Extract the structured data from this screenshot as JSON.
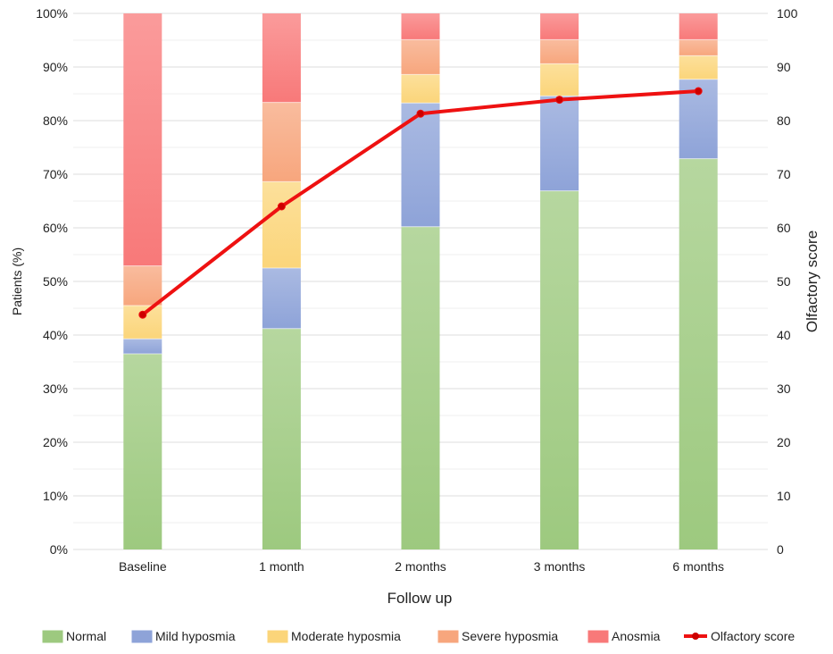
{
  "chart_data": {
    "type": "bar",
    "stacked": true,
    "title": "",
    "xlabel": "Follow up",
    "ylabel": "Patients (%)",
    "y2label": "Olfactory score",
    "categories": [
      "Baseline",
      "1 month",
      "2 months",
      "3 months",
      "6 months"
    ],
    "ylim": [
      0,
      100
    ],
    "y2lim": [
      0,
      100
    ],
    "yticks": [
      "0%",
      "10%",
      "20%",
      "30%",
      "40%",
      "50%",
      "60%",
      "70%",
      "80%",
      "90%",
      "100%"
    ],
    "y2ticks": [
      "0",
      "10",
      "20",
      "30",
      "40",
      "50",
      "60",
      "70",
      "80",
      "90",
      "100"
    ],
    "grid": true,
    "legend_position": "bottom",
    "series": [
      {
        "name": "Normal",
        "color": "#9dc97f",
        "values": [
          36.5,
          41.2,
          60.2,
          66.9,
          72.9
        ]
      },
      {
        "name": "Mild hyposmia",
        "color": "#8ea3d8",
        "values": [
          2.8,
          11.3,
          23.1,
          17.7,
          14.8
        ]
      },
      {
        "name": "Moderate hyposmia",
        "color": "#fbd57a",
        "values": [
          6.2,
          16.1,
          5.3,
          6.0,
          4.4
        ]
      },
      {
        "name": "Severe hyposmia",
        "color": "#f7a67d",
        "values": [
          7.4,
          14.8,
          6.5,
          4.5,
          3.0
        ]
      },
      {
        "name": "Anosmia",
        "color": "#f87979",
        "values": [
          47.1,
          16.6,
          4.9,
          4.9,
          4.9
        ]
      }
    ],
    "line": {
      "name": "Olfactory score",
      "color": "#ee1111",
      "axis": "right",
      "values": [
        43.8,
        64.0,
        81.3,
        83.9,
        85.5
      ]
    }
  }
}
